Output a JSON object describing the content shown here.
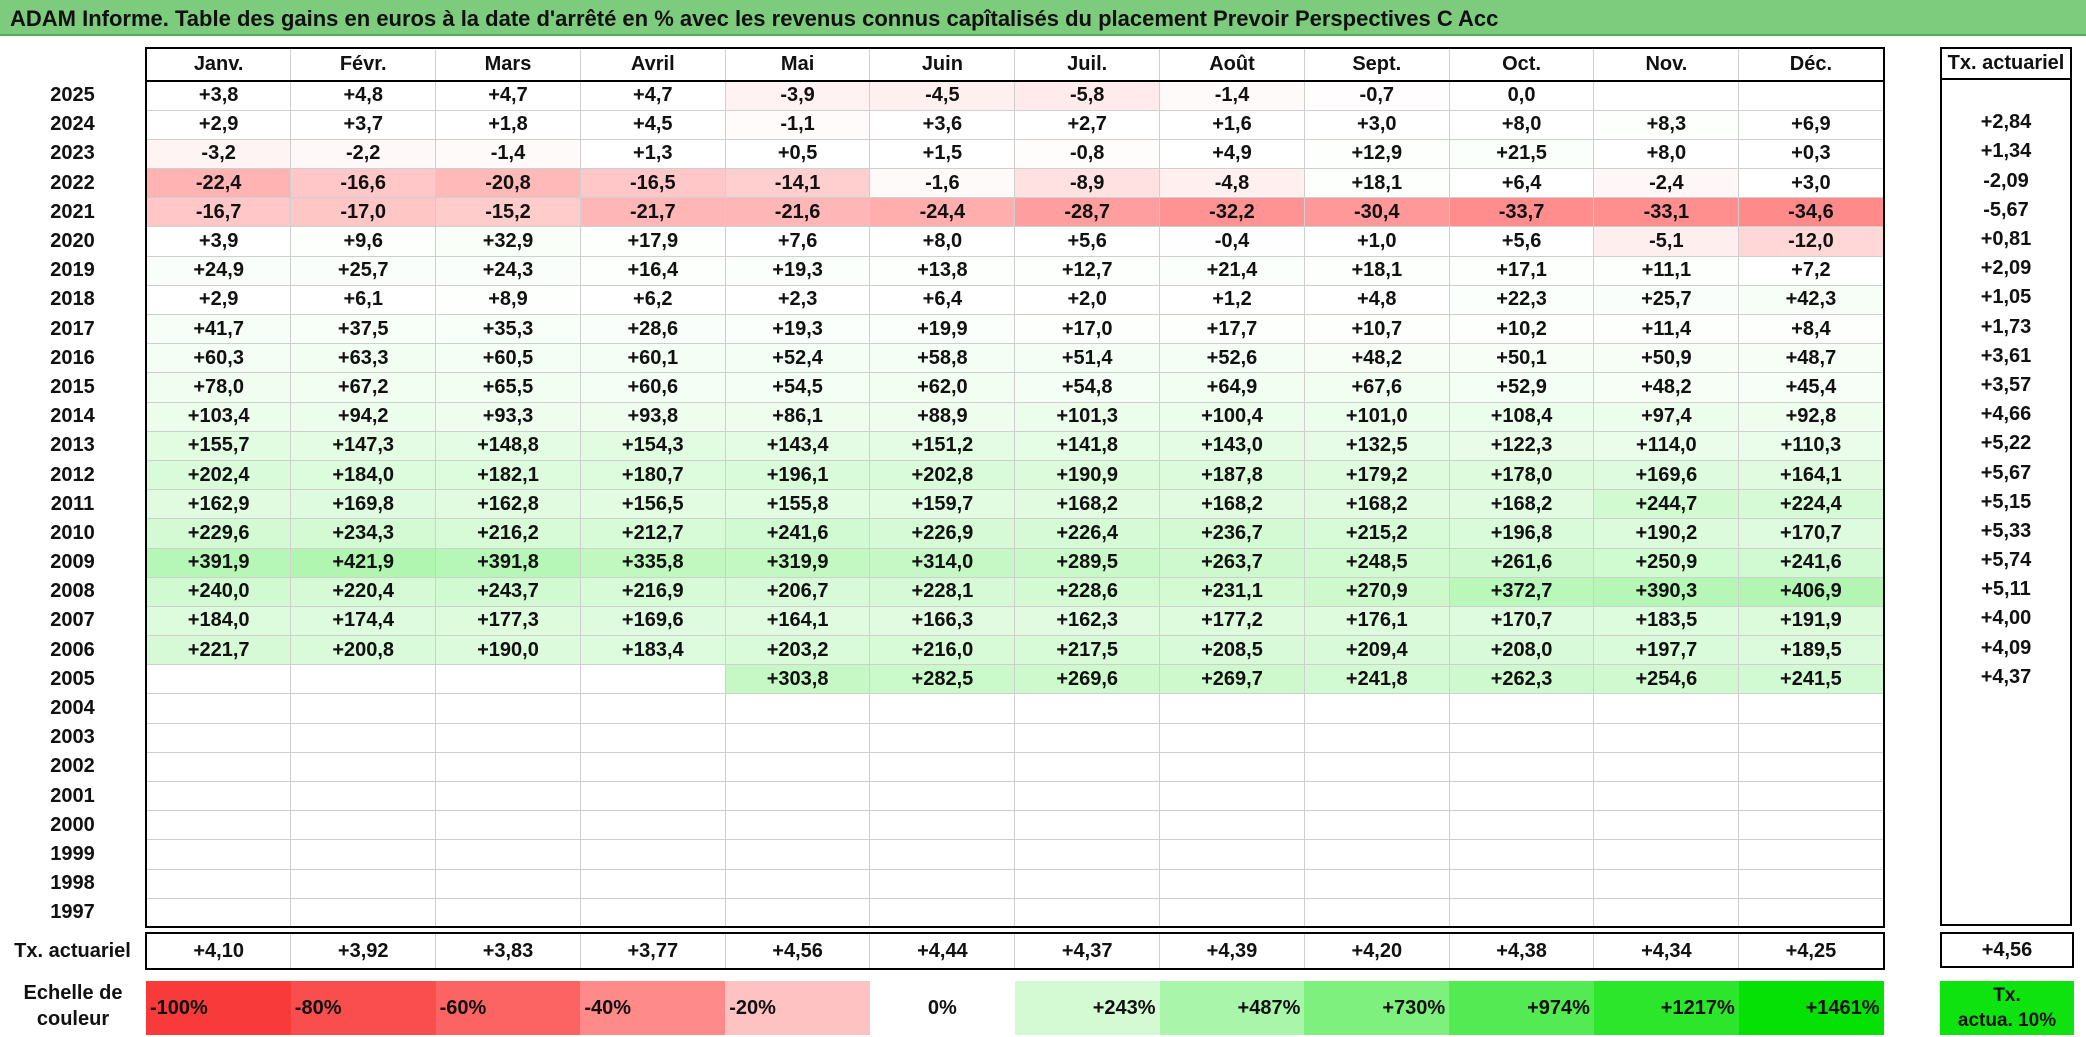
{
  "title": "ADAM Informe. Table des gains en euros à la date d'arrêté en % avec les revenus connus capîtalisés du placement Prevoir Perspectives C Acc",
  "months": [
    "Janv.",
    "Févr.",
    "Mars",
    "Avril",
    "Mai",
    "Juin",
    "Juil.",
    "Août",
    "Sept.",
    "Oct.",
    "Nov.",
    "Déc."
  ],
  "side_header": "Tx. actuariel",
  "rows": [
    {
      "year": "2025",
      "values": [
        "+3,8",
        "+4,8",
        "+4,7",
        "+4,7",
        "-3,9",
        "-4,5",
        "-5,8",
        "-1,4",
        "-0,7",
        "0,0",
        "",
        ""
      ],
      "tx": ""
    },
    {
      "year": "2024",
      "values": [
        "+2,9",
        "+3,7",
        "+1,8",
        "+4,5",
        "-1,1",
        "+3,6",
        "+2,7",
        "+1,6",
        "+3,0",
        "+8,0",
        "+8,3",
        "+6,9"
      ],
      "tx": "+2,84"
    },
    {
      "year": "2023",
      "values": [
        "-3,2",
        "-2,2",
        "-1,4",
        "+1,3",
        "+0,5",
        "+1,5",
        "-0,8",
        "+4,9",
        "+12,9",
        "+21,5",
        "+8,0",
        "+0,3"
      ],
      "tx": "+1,34"
    },
    {
      "year": "2022",
      "values": [
        "-22,4",
        "-16,6",
        "-20,8",
        "-16,5",
        "-14,1",
        "-1,6",
        "-8,9",
        "-4,8",
        "+18,1",
        "+6,4",
        "-2,4",
        "+3,0"
      ],
      "tx": "-2,09"
    },
    {
      "year": "2021",
      "values": [
        "-16,7",
        "-17,0",
        "-15,2",
        "-21,7",
        "-21,6",
        "-24,4",
        "-28,7",
        "-32,2",
        "-30,4",
        "-33,7",
        "-33,1",
        "-34,6"
      ],
      "tx": "-5,67"
    },
    {
      "year": "2020",
      "values": [
        "+3,9",
        "+9,6",
        "+32,9",
        "+17,9",
        "+7,6",
        "+8,0",
        "+5,6",
        "-0,4",
        "+1,0",
        "+5,6",
        "-5,1",
        "-12,0"
      ],
      "tx": "+0,81"
    },
    {
      "year": "2019",
      "values": [
        "+24,9",
        "+25,7",
        "+24,3",
        "+16,4",
        "+19,3",
        "+13,8",
        "+12,7",
        "+21,4",
        "+18,1",
        "+17,1",
        "+11,1",
        "+7,2"
      ],
      "tx": "+2,09"
    },
    {
      "year": "2018",
      "values": [
        "+2,9",
        "+6,1",
        "+8,9",
        "+6,2",
        "+2,3",
        "+6,4",
        "+2,0",
        "+1,2",
        "+4,8",
        "+22,3",
        "+25,7",
        "+42,3"
      ],
      "tx": "+1,05"
    },
    {
      "year": "2017",
      "values": [
        "+41,7",
        "+37,5",
        "+35,3",
        "+28,6",
        "+19,3",
        "+19,9",
        "+17,0",
        "+17,7",
        "+10,7",
        "+10,2",
        "+11,4",
        "+8,4"
      ],
      "tx": "+1,73"
    },
    {
      "year": "2016",
      "values": [
        "+60,3",
        "+63,3",
        "+60,5",
        "+60,1",
        "+52,4",
        "+58,8",
        "+51,4",
        "+52,6",
        "+48,2",
        "+50,1",
        "+50,9",
        "+48,7"
      ],
      "tx": "+3,61"
    },
    {
      "year": "2015",
      "values": [
        "+78,0",
        "+67,2",
        "+65,5",
        "+60,6",
        "+54,5",
        "+62,0",
        "+54,8",
        "+64,9",
        "+67,6",
        "+52,9",
        "+48,2",
        "+45,4"
      ],
      "tx": "+3,57"
    },
    {
      "year": "2014",
      "values": [
        "+103,4",
        "+94,2",
        "+93,3",
        "+93,8",
        "+86,1",
        "+88,9",
        "+101,3",
        "+100,4",
        "+101,0",
        "+108,4",
        "+97,4",
        "+92,8"
      ],
      "tx": "+4,66"
    },
    {
      "year": "2013",
      "values": [
        "+155,7",
        "+147,3",
        "+148,8",
        "+154,3",
        "+143,4",
        "+151,2",
        "+141,8",
        "+143,0",
        "+132,5",
        "+122,3",
        "+114,0",
        "+110,3"
      ],
      "tx": "+5,22"
    },
    {
      "year": "2012",
      "values": [
        "+202,4",
        "+184,0",
        "+182,1",
        "+180,7",
        "+196,1",
        "+202,8",
        "+190,9",
        "+187,8",
        "+179,2",
        "+178,0",
        "+169,6",
        "+164,1"
      ],
      "tx": "+5,67"
    },
    {
      "year": "2011",
      "values": [
        "+162,9",
        "+169,8",
        "+162,8",
        "+156,5",
        "+155,8",
        "+159,7",
        "+168,2",
        "+168,2",
        "+168,2",
        "+168,2",
        "+244,7",
        "+224,4"
      ],
      "tx": "+5,15"
    },
    {
      "year": "2010",
      "values": [
        "+229,6",
        "+234,3",
        "+216,2",
        "+212,7",
        "+241,6",
        "+226,9",
        "+226,4",
        "+236,7",
        "+215,2",
        "+196,8",
        "+190,2",
        "+170,7"
      ],
      "tx": "+5,33"
    },
    {
      "year": "2009",
      "values": [
        "+391,9",
        "+421,9",
        "+391,8",
        "+335,8",
        "+319,9",
        "+314,0",
        "+289,5",
        "+263,7",
        "+248,5",
        "+261,6",
        "+250,9",
        "+241,6"
      ],
      "tx": "+5,74"
    },
    {
      "year": "2008",
      "values": [
        "+240,0",
        "+220,4",
        "+243,7",
        "+216,9",
        "+206,7",
        "+228,1",
        "+228,6",
        "+231,1",
        "+270,9",
        "+372,7",
        "+390,3",
        "+406,9"
      ],
      "tx": "+5,11"
    },
    {
      "year": "2007",
      "values": [
        "+184,0",
        "+174,4",
        "+177,3",
        "+169,6",
        "+164,1",
        "+166,3",
        "+162,3",
        "+177,2",
        "+176,1",
        "+170,7",
        "+183,5",
        "+191,9"
      ],
      "tx": "+4,00"
    },
    {
      "year": "2006",
      "values": [
        "+221,7",
        "+200,8",
        "+190,0",
        "+183,4",
        "+203,2",
        "+216,0",
        "+217,5",
        "+208,5",
        "+209,4",
        "+208,0",
        "+197,7",
        "+189,5"
      ],
      "tx": "+4,09"
    },
    {
      "year": "2005",
      "values": [
        "",
        "",
        "",
        "",
        "+303,8",
        "+282,5",
        "+269,6",
        "+269,7",
        "+241,8",
        "+262,3",
        "+254,6",
        "+241,5"
      ],
      "tx": "+4,37"
    },
    {
      "year": "2004",
      "values": [
        "",
        "",
        "",
        "",
        "",
        "",
        "",
        "",
        "",
        "",
        "",
        ""
      ],
      "tx": ""
    },
    {
      "year": "2003",
      "values": [
        "",
        "",
        "",
        "",
        "",
        "",
        "",
        "",
        "",
        "",
        "",
        ""
      ],
      "tx": ""
    },
    {
      "year": "2002",
      "values": [
        "",
        "",
        "",
        "",
        "",
        "",
        "",
        "",
        "",
        "",
        "",
        ""
      ],
      "tx": ""
    },
    {
      "year": "2001",
      "values": [
        "",
        "",
        "",
        "",
        "",
        "",
        "",
        "",
        "",
        "",
        "",
        ""
      ],
      "tx": ""
    },
    {
      "year": "2000",
      "values": [
        "",
        "",
        "",
        "",
        "",
        "",
        "",
        "",
        "",
        "",
        "",
        ""
      ],
      "tx": ""
    },
    {
      "year": "1999",
      "values": [
        "",
        "",
        "",
        "",
        "",
        "",
        "",
        "",
        "",
        "",
        "",
        ""
      ],
      "tx": ""
    },
    {
      "year": "1998",
      "values": [
        "",
        "",
        "",
        "",
        "",
        "",
        "",
        "",
        "",
        "",
        "",
        ""
      ],
      "tx": ""
    },
    {
      "year": "1997",
      "values": [
        "",
        "",
        "",
        "",
        "",
        "",
        "",
        "",
        "",
        "",
        "",
        ""
      ],
      "tx": ""
    }
  ],
  "footer": {
    "label": "Tx. actuariel",
    "values": [
      "+4,10",
      "+3,92",
      "+3,83",
      "+3,77",
      "+4,56",
      "+4,44",
      "+4,37",
      "+4,39",
      "+4,20",
      "+4,38",
      "+4,34",
      "+4,25"
    ],
    "total": "+4,56"
  },
  "scale": {
    "label_line1": "Echelle de",
    "label_line2": "couleur",
    "items": [
      {
        "label": "-100%",
        "color": "#f83a3a",
        "align": "left"
      },
      {
        "label": "-80%",
        "color": "#fa4e4e",
        "align": "left"
      },
      {
        "label": "-60%",
        "color": "#fc6464",
        "align": "left"
      },
      {
        "label": "-40%",
        "color": "#fe8a8a",
        "align": "left"
      },
      {
        "label": "-20%",
        "color": "#ffc2c2",
        "align": "left"
      },
      {
        "label": "0%",
        "color": "#ffffff",
        "align": "center"
      },
      {
        "label": "+243%",
        "color": "#d4fad4",
        "align": "right"
      },
      {
        "label": "+487%",
        "color": "#a9f5a9",
        "align": "right"
      },
      {
        "label": "+730%",
        "color": "#7ef07e",
        "align": "right"
      },
      {
        "label": "+974%",
        "color": "#54ea54",
        "align": "right"
      },
      {
        "label": "+1217%",
        "color": "#2be62b",
        "align": "right"
      },
      {
        "label": "+1461%",
        "color": "#05e005",
        "align": "right"
      }
    ],
    "side_line1": "Tx.",
    "side_line2": "actua. 10%",
    "side_color": "#0fe30f"
  }
}
